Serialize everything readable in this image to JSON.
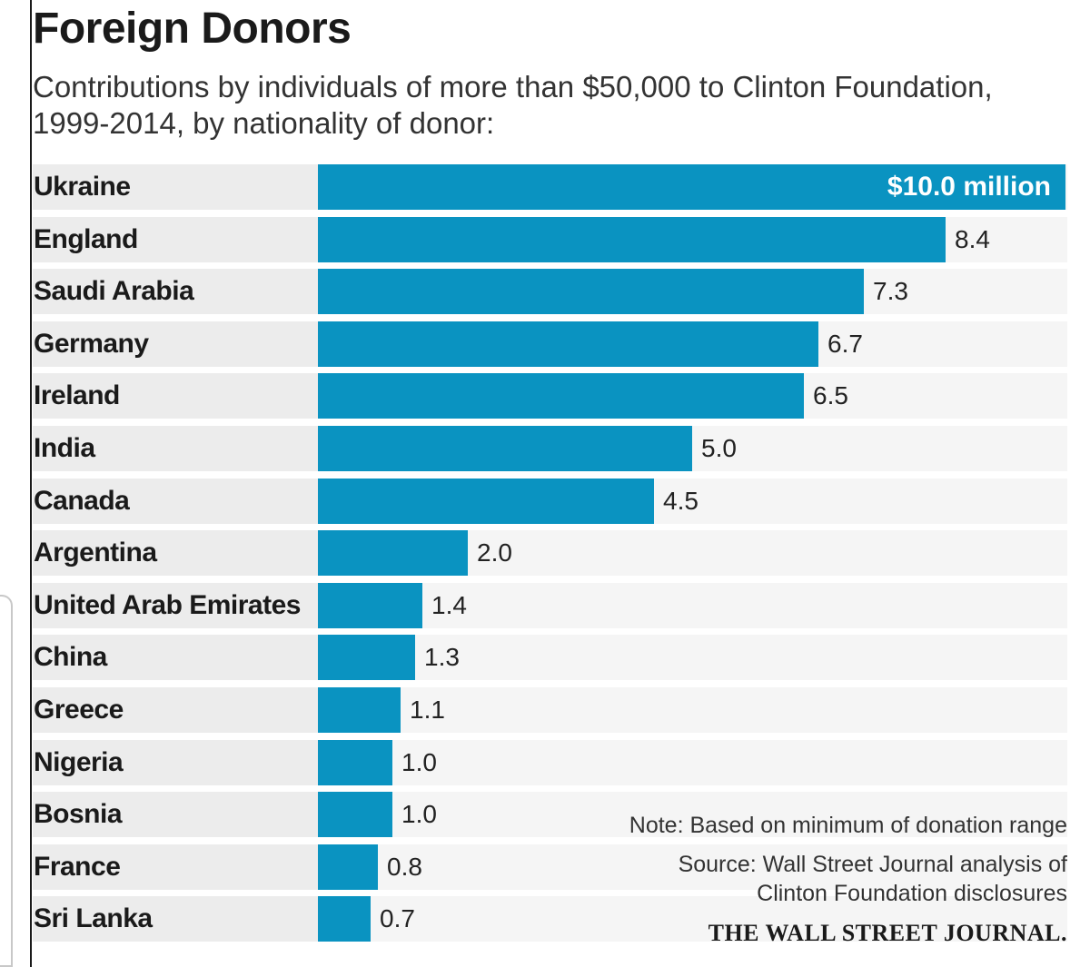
{
  "chart_data": {
    "type": "bar",
    "orientation": "horizontal",
    "title": "Foreign Donors",
    "subtitle": "Contributions by individuals of more than $50,000 to Clinton Foundation, 1999-2014, by nationality of donor:",
    "categories": [
      "Ukraine",
      "England",
      "Saudi Arabia",
      "Germany",
      "Ireland",
      "India",
      "Canada",
      "Argentina",
      "United Arab Emirates",
      "China",
      "Greece",
      "Nigeria",
      "Bosnia",
      "France",
      "Sri Lanka"
    ],
    "values": [
      10.0,
      8.4,
      7.3,
      6.7,
      6.5,
      5.0,
      4.5,
      2.0,
      1.4,
      1.3,
      1.1,
      1.0,
      1.0,
      0.8,
      0.7
    ],
    "value_labels": [
      "$10.0 million",
      "8.4",
      "7.3",
      "6.7",
      "6.5",
      "5.0",
      "4.5",
      "2.0",
      "1.4",
      "1.3",
      "1.1",
      "1.0",
      "1.0",
      "0.8",
      "0.7"
    ],
    "unit": "million dollars",
    "xlim": [
      0,
      10
    ],
    "bar_color": "#0a93c1"
  },
  "notes": {
    "note": "Note: Based on minimum of donation range",
    "source_line1": "Source: Wall Street Journal analysis of",
    "source_line2": "Clinton Foundation disclosures"
  },
  "logo": "THE WALL STREET JOURNAL."
}
